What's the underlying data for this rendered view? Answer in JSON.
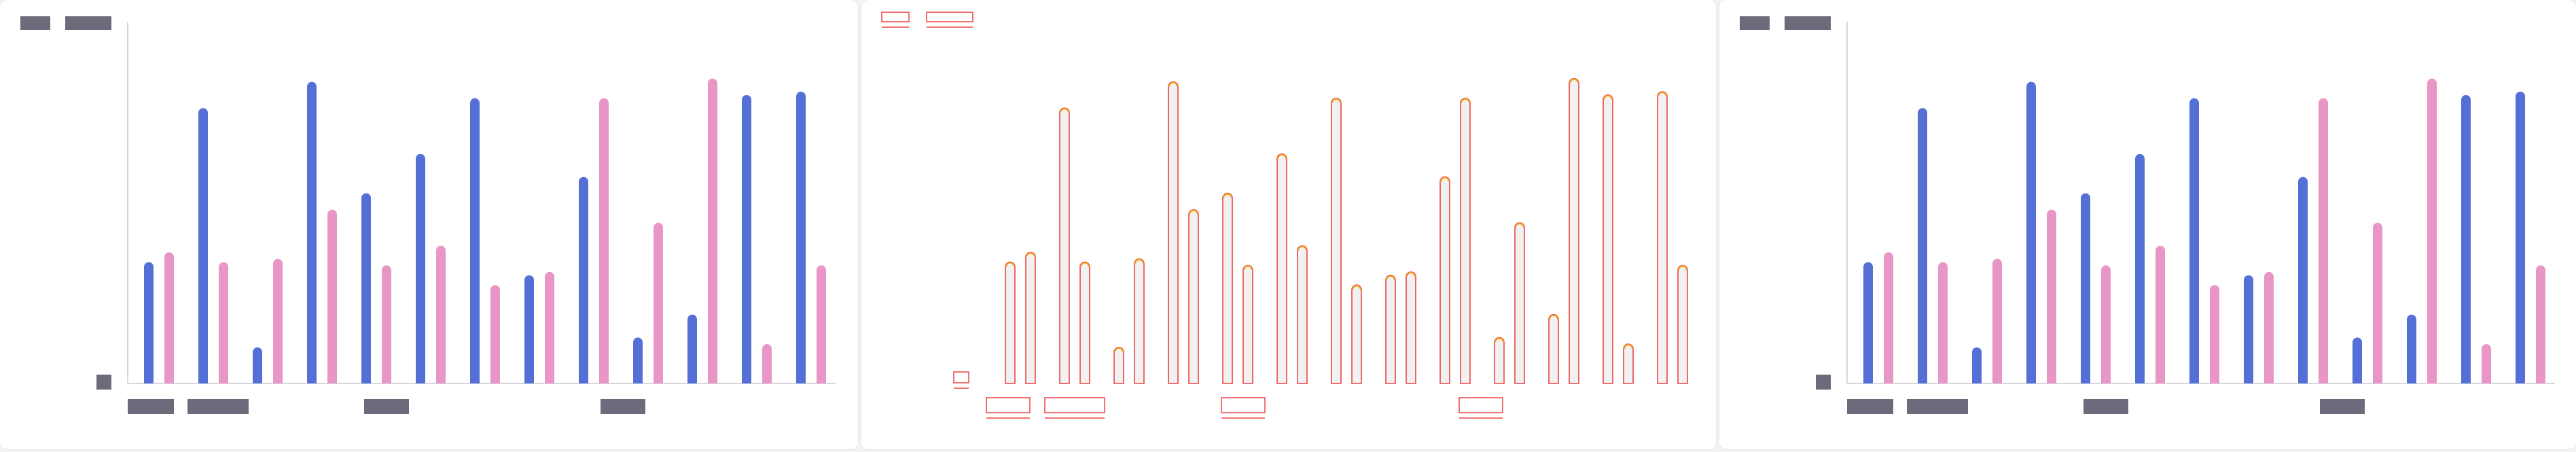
{
  "colors": {
    "background": "#f3f3f5",
    "panel": "#ffffff",
    "series_a": "#5470d6",
    "series_b": "#e896c6",
    "axis": "#d8d8dc",
    "redacted": "#6b6b7b",
    "outline": "#ee4444",
    "outline_fill": "#f1f1f1",
    "outline_cap": "#f0a020"
  },
  "panels": [
    {
      "id": "chart-left",
      "style": "solid"
    },
    {
      "id": "chart-middle",
      "style": "outline"
    },
    {
      "id": "chart-right",
      "style": "solid"
    }
  ],
  "chart_data": {
    "type": "bar",
    "title": "",
    "xlabel": "",
    "ylabel": "",
    "ylim": [
      0,
      100
    ],
    "grid": false,
    "legend": "top-left",
    "text_redacted": true,
    "categories": [
      "",
      "",
      "",
      "",
      "",
      "",
      "",
      "",
      "",
      "",
      "",
      "",
      ""
    ],
    "series": [
      {
        "values": [
          37,
          84,
          11,
          92,
          58,
          70,
          87,
          33,
          63,
          14,
          21,
          88,
          89
        ]
      },
      {
        "values": [
          40,
          37,
          38,
          53,
          36,
          42,
          30,
          34,
          87,
          49,
          93,
          12,
          36
        ]
      }
    ]
  }
}
